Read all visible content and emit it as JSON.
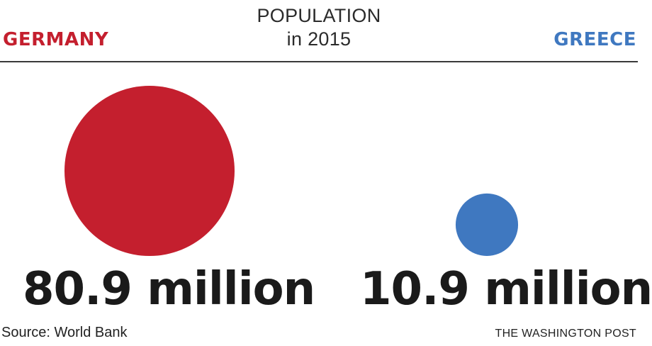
{
  "chart_data": {
    "type": "bubble",
    "title": "POPULATION",
    "subtitle": "in 2015",
    "unit": "million",
    "series": [
      {
        "name": "GERMANY",
        "value": 80.9,
        "value_label": "80.9 million",
        "color": "#c41f2e"
      },
      {
        "name": "GREECE",
        "value": 10.9,
        "value_label": "10.9 million",
        "color": "#3f78c0"
      }
    ],
    "source": "Source: World Bank",
    "credit": "THE WASHINGTON POST"
  }
}
